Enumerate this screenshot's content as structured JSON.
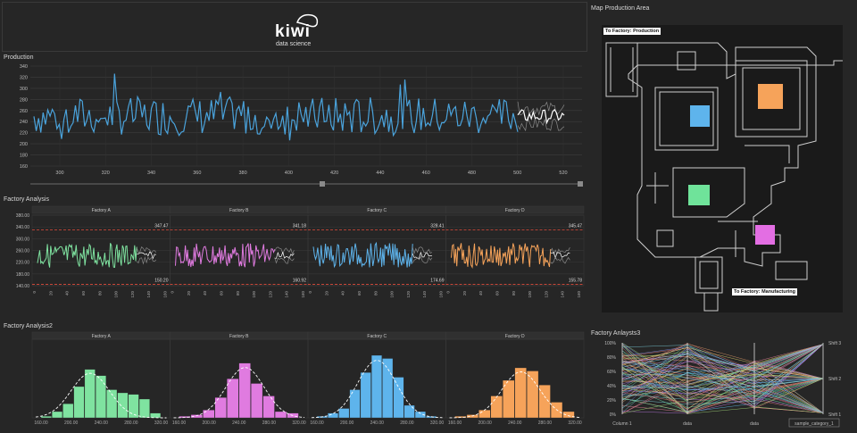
{
  "logo": {
    "brand": "kiwi",
    "tagline": "data science"
  },
  "production": {
    "title": "Production",
    "y_ticks": [
      "340",
      "320",
      "300",
      "280",
      "260",
      "240",
      "220",
      "200",
      "180",
      "160"
    ],
    "x_ticks": [
      "300",
      "320",
      "340",
      "360",
      "380",
      "400",
      "420",
      "440",
      "460",
      "480",
      "500",
      "520"
    ]
  },
  "factory_analysis": {
    "title": "Factory Analysis",
    "y_ticks": [
      "380.00",
      "340.00",
      "300.00",
      "260.00",
      "220.00",
      "180.00",
      "140.00"
    ],
    "x_ticks": [
      "0",
      "20",
      "40",
      "60",
      "80",
      "100",
      "120",
      "140",
      "160"
    ],
    "facets": [
      {
        "name": "Factory A",
        "upper": "347.47",
        "lower": "150.20",
        "color": "#7fe3a0"
      },
      {
        "name": "Factory B",
        "upper": "341.18",
        "lower": "160.92",
        "color": "#e07be0"
      },
      {
        "name": "Factory C",
        "upper": "328.41",
        "lower": "174.69",
        "color": "#5eb4ec"
      },
      {
        "name": "Factory D",
        "upper": "345.47",
        "lower": "155.78",
        "color": "#f6a35a"
      }
    ]
  },
  "factory_analysis2": {
    "title": "Factory Analysis2",
    "facets": [
      {
        "name": "Factory A",
        "x_ticks": [
          "160.00",
          "200.00",
          "240.00",
          "280.00",
          "320.00"
        ],
        "color": "#7fe3a0",
        "bars": [
          1,
          4,
          9,
          20,
          31,
          27,
          18,
          16,
          15,
          12,
          3
        ]
      },
      {
        "name": "Factory B",
        "x_ticks": [
          "160.00",
          "200.00",
          "240.00",
          "280.00",
          "320.00"
        ],
        "color": "#e07be0",
        "bars": [
          1,
          2,
          5,
          13,
          25,
          35,
          22,
          14,
          4,
          3
        ]
      },
      {
        "name": "Factory C",
        "x_ticks": [
          "160.00",
          "200.00",
          "240.00",
          "280.00",
          "320.00"
        ],
        "color": "#5eb4ec",
        "bars": [
          1,
          3,
          6,
          18,
          29,
          40,
          38,
          26,
          8,
          4,
          1
        ]
      },
      {
        "name": "Factory D",
        "x_ticks": [
          "160.00",
          "200.00",
          "240.00",
          "280.00",
          "320.00"
        ],
        "color": "#f6a35a",
        "bars": [
          1,
          2,
          5,
          14,
          24,
          32,
          30,
          21,
          10,
          4
        ]
      }
    ]
  },
  "map": {
    "title": "Map Production Area",
    "label_top": "To Factory: Production",
    "label_bottom": "To Factory: Manufacturing",
    "zones": [
      {
        "name": "orange-zone",
        "color": "#f6a35a"
      },
      {
        "name": "blue-zone",
        "color": "#5eb4ec"
      },
      {
        "name": "green-zone",
        "color": "#6fe39a"
      },
      {
        "name": "pink-zone",
        "color": "#e36ee3"
      }
    ]
  },
  "factory_analysis3": {
    "title": "Factory Anlaysts3",
    "y_ticks": [
      "100%",
      "80%",
      "60%",
      "40%",
      "20%",
      "0%"
    ],
    "right_ticks": [
      "Shift 3",
      "Shift 2",
      "Shift 1"
    ],
    "axes": [
      "Column 1",
      "data",
      "data",
      "sample_category_1"
    ]
  }
}
